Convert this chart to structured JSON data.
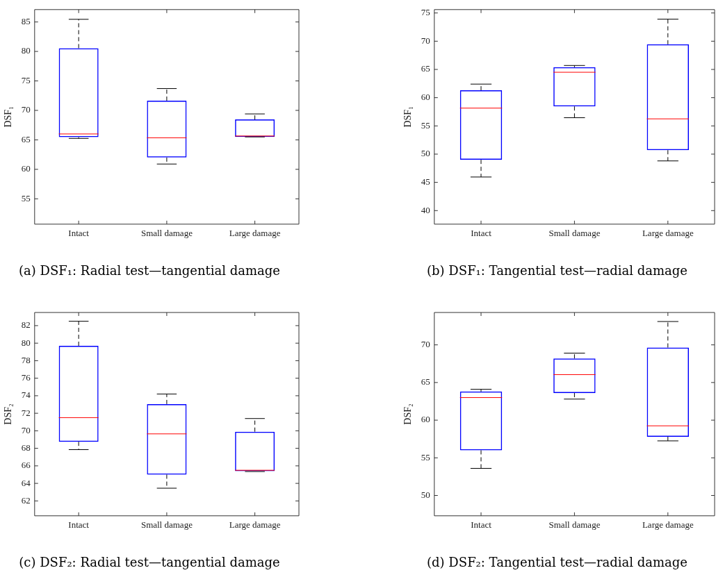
{
  "chart_data": [
    {
      "type": "box",
      "title": "(a) DSF₁: Radial test—tangential damage",
      "ylabel": "DSF₁",
      "categories": [
        "Intact",
        "Small damage",
        "Large damage"
      ],
      "ylim": [
        50.7,
        87.1
      ],
      "yticks": [
        55,
        60,
        65,
        70,
        75,
        80,
        85
      ],
      "grid": false,
      "legend": false,
      "boxes": [
        {
          "low": 65.25,
          "q1": 65.45,
          "median": 66.0,
          "q3": 80.55,
          "high": 85.45
        },
        {
          "low": 60.9,
          "q1": 62.0,
          "median": 65.35,
          "q3": 71.65,
          "high": 73.7
        },
        {
          "low": 65.5,
          "q1": 65.5,
          "median": 65.65,
          "q3": 68.45,
          "high": 69.4
        }
      ]
    },
    {
      "type": "box",
      "title": "(b) DSF₁: Tangential test—radial damage",
      "ylabel": "DSF₁",
      "categories": [
        "Intact",
        "Small damage",
        "Large damage"
      ],
      "ylim": [
        37.6,
        75.6
      ],
      "yticks": [
        40,
        45,
        50,
        55,
        60,
        65,
        70,
        75
      ],
      "grid": false,
      "legend": false,
      "boxes": [
        {
          "low": 45.95,
          "q1": 49.0,
          "median": 58.15,
          "q3": 61.3,
          "high": 62.4
        },
        {
          "low": 56.45,
          "q1": 58.45,
          "median": 64.5,
          "q3": 65.4,
          "high": 65.7
        },
        {
          "low": 48.8,
          "q1": 50.7,
          "median": 56.25,
          "q3": 69.45,
          "high": 73.9
        }
      ]
    },
    {
      "type": "box",
      "title": "(c) DSF₂: Radial test—tangential damage",
      "ylabel": "DSF₂",
      "categories": [
        "Intact",
        "Small damage",
        "Large damage"
      ],
      "ylim": [
        60.3,
        83.5
      ],
      "yticks": [
        62,
        64,
        66,
        68,
        70,
        72,
        74,
        76,
        78,
        80,
        82
      ],
      "grid": false,
      "legend": false,
      "boxes": [
        {
          "low": 67.85,
          "q1": 68.75,
          "median": 71.5,
          "q3": 79.7,
          "high": 82.5
        },
        {
          "low": 63.45,
          "q1": 65.0,
          "median": 69.65,
          "q3": 73.05,
          "high": 74.2
        },
        {
          "low": 65.35,
          "q1": 65.4,
          "median": 65.5,
          "q3": 69.9,
          "high": 71.4
        }
      ]
    },
    {
      "type": "box",
      "title": "(d) DSF₂: Tangential test—radial damage",
      "ylabel": "DSF₂",
      "categories": [
        "Intact",
        "Small damage",
        "Large damage"
      ],
      "ylim": [
        47.3,
        74.3
      ],
      "yticks": [
        50,
        55,
        60,
        65,
        70
      ],
      "grid": false,
      "legend": false,
      "boxes": [
        {
          "low": 53.6,
          "q1": 56.0,
          "median": 63.0,
          "q3": 63.8,
          "high": 64.1
        },
        {
          "low": 62.8,
          "q1": 63.6,
          "median": 66.05,
          "q3": 68.2,
          "high": 68.9
        },
        {
          "low": 57.25,
          "q1": 57.8,
          "median": 59.25,
          "q3": 69.65,
          "high": 73.1
        }
      ]
    }
  ]
}
